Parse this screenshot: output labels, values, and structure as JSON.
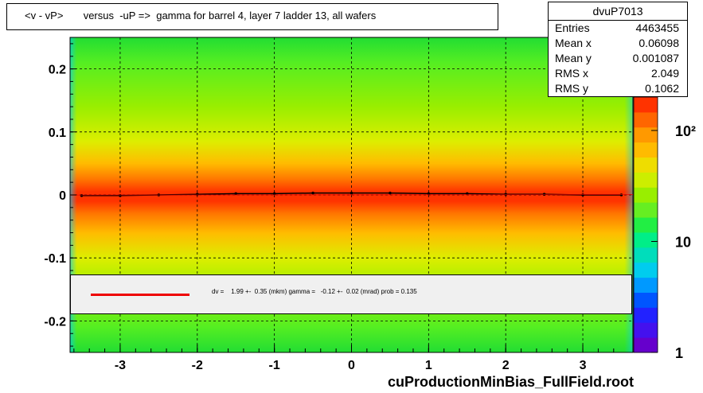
{
  "title": "<v - vP>       versus  -uP =>  gamma for barrel 4, layer 7 ladder 13, all wafers",
  "stats": {
    "name": "dvuP7013",
    "rows": [
      {
        "label": "Entries",
        "value": "4463455"
      },
      {
        "label": "Mean x",
        "value": "0.06098"
      },
      {
        "label": "Mean y",
        "value": "0.001087"
      },
      {
        "label": "RMS x",
        "value": "2.049"
      },
      {
        "label": "RMS y",
        "value": "0.1062"
      }
    ]
  },
  "legend": {
    "text": "dv =    1.99 +-  0.35 (mkm) gamma =   -0.12 +-  0.02 (mrad) prob = 0.135",
    "line_color": "#ee0000"
  },
  "footer": "cuProductionMinBias_FullField.root",
  "colorbar": {
    "labels": [
      "10²",
      "10",
      "1"
    ],
    "colors": [
      "#6600cc",
      "#4411ee",
      "#2222ff",
      "#0055ff",
      "#0099ff",
      "#00ccee",
      "#00ddbb",
      "#00ee88",
      "#22ee44",
      "#66ee22",
      "#99ee00",
      "#ccee00",
      "#eedd00",
      "#ffbb00",
      "#ff9900",
      "#ff6600",
      "#ff3300"
    ]
  },
  "chart_data": {
    "type": "heatmap",
    "title": "<v - vP>       versus  -uP =>  gamma for barrel 4, layer 7 ladder 13, all wafers",
    "xlim": [
      -3.65,
      3.65
    ],
    "ylim": [
      -0.25,
      0.25
    ],
    "x_ticks": [
      -3,
      -2,
      -1,
      0,
      1,
      2,
      3
    ],
    "y_ticks": [
      -0.2,
      -0.1,
      0,
      0.1,
      0.2
    ],
    "x_tick_labels": [
      "-3",
      "-2",
      "-1",
      "0",
      "1",
      "2",
      "3"
    ],
    "y_tick_labels": [
      "-0.2",
      "-0.1",
      "0",
      "0.1",
      "0.2"
    ],
    "z_scale": "log",
    "z_range": [
      1,
      200
    ],
    "grid": true,
    "profile": {
      "x": [
        -3.5,
        -3.0,
        -2.5,
        -2.0,
        -1.5,
        -1.0,
        -0.5,
        0.0,
        0.5,
        1.0,
        1.5,
        2.0,
        2.5,
        3.0,
        3.5
      ],
      "y": [
        -0.001,
        -0.001,
        0.0,
        0.001,
        0.002,
        0.002,
        0.003,
        0.003,
        0.003,
        0.002,
        0.002,
        0.001,
        0.001,
        0.0,
        0.0
      ]
    },
    "fit": {
      "intercept_mkm": 1.99,
      "intercept_err_mkm": 0.35,
      "gamma_mrad": -0.12,
      "gamma_err_mrad": 0.02,
      "prob": 0.135
    }
  }
}
